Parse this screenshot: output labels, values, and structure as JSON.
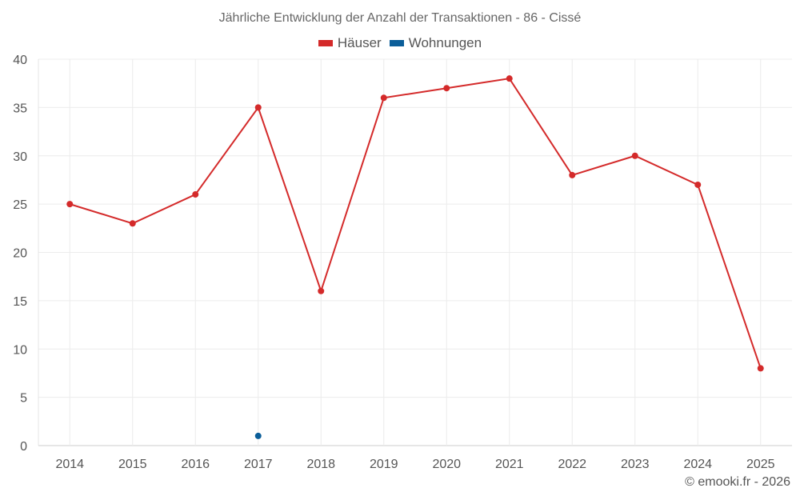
{
  "chart_data": {
    "type": "line",
    "title": "Jährliche Entwicklung der Anzahl der Transaktionen - 86 - Cissé",
    "categories": [
      "2014",
      "2015",
      "2016",
      "2017",
      "2018",
      "2019",
      "2020",
      "2021",
      "2022",
      "2023",
      "2024",
      "2025"
    ],
    "series": [
      {
        "name": "Häuser",
        "color": "#d42a2a",
        "values": [
          25,
          23,
          26,
          35,
          16,
          36,
          37,
          38,
          28,
          30,
          27,
          8
        ]
      },
      {
        "name": "Wohnungen",
        "color": "#0b5e99",
        "values": [
          null,
          null,
          null,
          1,
          null,
          null,
          null,
          null,
          null,
          null,
          null,
          null
        ]
      }
    ],
    "ylim": [
      0,
      40
    ],
    "yticks": [
      0,
      5,
      10,
      15,
      20,
      25,
      30,
      35,
      40
    ],
    "grid": true,
    "legend": "top-center"
  },
  "credit": "© emooki.fr - 2026"
}
